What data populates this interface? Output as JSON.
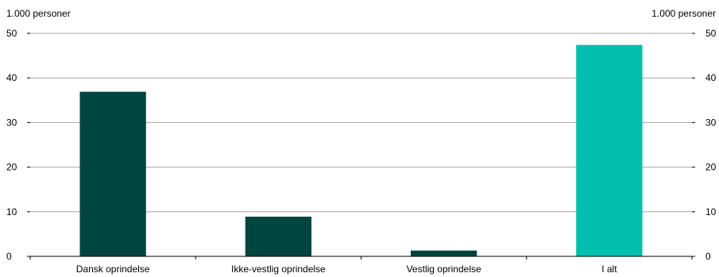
{
  "chart_data": {
    "type": "bar",
    "y_unit_left": "1.000 personer",
    "y_unit_right": "1.000 personer",
    "categories": [
      "Dansk oprindelse",
      "Ikke-vestlig oprindelse",
      "Vestlig oprindelse",
      "I alt"
    ],
    "values": [
      36.9,
      8.9,
      1.3,
      47.4
    ],
    "colors": [
      "#004540",
      "#004540",
      "#004540",
      "#00bfae"
    ],
    "ylim": [
      0,
      50
    ],
    "yticks": [
      0,
      10,
      20,
      30,
      40,
      50
    ],
    "grid": true,
    "legend": "none"
  }
}
